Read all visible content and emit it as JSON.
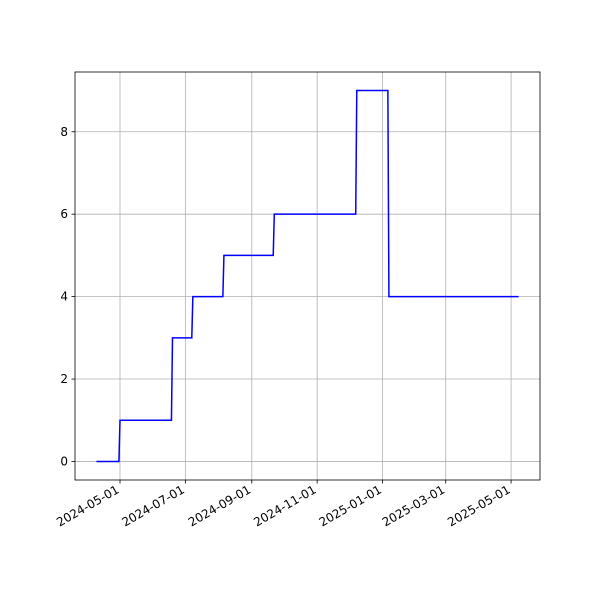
{
  "chart_data": {
    "type": "line",
    "x": [
      "2024-04-09",
      "2024-04-30",
      "2024-05-01",
      "2024-06-18",
      "2024-06-19",
      "2024-07-07",
      "2024-07-08",
      "2024-08-05",
      "2024-08-06",
      "2024-09-21",
      "2024-09-22",
      "2024-12-07",
      "2024-12-08",
      "2025-01-06",
      "2025-01-07",
      "2025-05-08"
    ],
    "series": [
      {
        "color": "#0000ff",
        "values": [
          0,
          0,
          1,
          1,
          3,
          3,
          4,
          4,
          5,
          5,
          6,
          6,
          9,
          9,
          4,
          4
        ]
      }
    ],
    "xlim": [
      "2024-03-20",
      "2025-05-28"
    ],
    "xticks": [
      "2024-05-01",
      "2024-07-01",
      "2024-09-01",
      "2024-11-01",
      "2025-01-01",
      "2025-03-01",
      "2025-05-01"
    ],
    "ylim": [
      -0.45,
      9.45
    ],
    "yticks": [
      0,
      2,
      4,
      6,
      8
    ],
    "grid": true
  }
}
